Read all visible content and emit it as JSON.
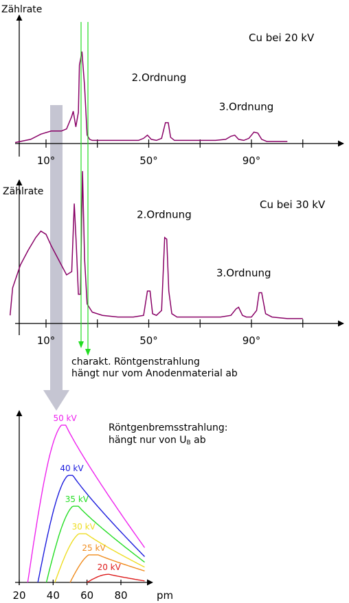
{
  "chart_data": [
    {
      "type": "line",
      "ylabel": "Zählrate",
      "annotation": "Cu bei 20 kV",
      "x_ticks": [
        "10°",
        "50°",
        "90°"
      ],
      "x_tick_values": [
        10,
        50,
        90
      ],
      "peak_labels": [
        {
          "text": "2.Ordnung",
          "x": 54,
          "y": 0.6
        },
        {
          "text": "3.Ordnung",
          "x": 88,
          "y": 0.32
        }
      ],
      "series": [
        {
          "x": [
            -2,
            4,
            8,
            12,
            16,
            18,
            20,
            20.6,
            21.6,
            22.6,
            23,
            24,
            25,
            26,
            27,
            28,
            30,
            34,
            38,
            42,
            46,
            48,
            49.5,
            51,
            53,
            55,
            56.5,
            57.6,
            58.5,
            60,
            64,
            68,
            72,
            76,
            80,
            82,
            83.5,
            85,
            87,
            89,
            91,
            92.5,
            94,
            96,
            100,
            104
          ],
          "y": [
            0.01,
            0.04,
            0.09,
            0.12,
            0.12,
            0.14,
            0.26,
            0.31,
            0.16,
            0.3,
            0.75,
            0.88,
            0.55,
            0.08,
            0.04,
            0.03,
            0.03,
            0.03,
            0.03,
            0.03,
            0.03,
            0.05,
            0.08,
            0.04,
            0.03,
            0.05,
            0.2,
            0.2,
            0.06,
            0.03,
            0.03,
            0.03,
            0.03,
            0.03,
            0.04,
            0.07,
            0.08,
            0.04,
            0.03,
            0.05,
            0.11,
            0.1,
            0.04,
            0.02,
            0.02,
            0.02
          ]
        }
      ]
    },
    {
      "type": "line",
      "ylabel": "Zählrate",
      "annotation": "Cu bei 30 kV",
      "x_ticks": [
        "10°",
        "50°",
        "90°"
      ],
      "x_tick_values": [
        10,
        50,
        90
      ],
      "peak_labels": [
        {
          "text": "2.Ordnung",
          "x": 56,
          "y": 0.65
        },
        {
          "text": "3.Ordnung",
          "x": 87,
          "y": 0.29
        }
      ],
      "series": [
        {
          "x": [
            -4,
            -3,
            0,
            3,
            6,
            8,
            10,
            12,
            15,
            18,
            20,
            21,
            21.8,
            22.6,
            23.4,
            24.2,
            25,
            26,
            28,
            32,
            38,
            44,
            48,
            49.5,
            50.5,
            51.5,
            53,
            55,
            56.2,
            57,
            57.8,
            59,
            61,
            66,
            72,
            78,
            82,
            84,
            85,
            86.5,
            88,
            90,
            92,
            93,
            94,
            95.5,
            98,
            104,
            110
          ],
          "y": [
            0.05,
            0.22,
            0.36,
            0.45,
            0.53,
            0.57,
            0.55,
            0.48,
            0.39,
            0.3,
            0.32,
            0.74,
            0.48,
            0.18,
            0.18,
            0.94,
            0.4,
            0.12,
            0.07,
            0.05,
            0.04,
            0.04,
            0.05,
            0.2,
            0.2,
            0.06,
            0.05,
            0.08,
            0.53,
            0.52,
            0.2,
            0.06,
            0.04,
            0.04,
            0.04,
            0.04,
            0.05,
            0.09,
            0.1,
            0.05,
            0.04,
            0.04,
            0.08,
            0.19,
            0.19,
            0.06,
            0.04,
            0.03,
            0.03
          ]
        }
      ]
    },
    {
      "type": "line",
      "xlabel": "pm",
      "x_ticks": [
        "20",
        "40",
        "60",
        "80"
      ],
      "x_tick_values": [
        20,
        40,
        60,
        80
      ],
      "annotation_lines": [
        "Röntgenbremsstrahlung:",
        "hängt nur von U"
      ],
      "annotation_sub": "B",
      "annotation_tail": " ab",
      "series": [
        {
          "name": "50 kV",
          "color": "#ee22ee",
          "start": 25,
          "peak_x": 47,
          "peak": 0.97
        },
        {
          "name": "40 kV",
          "color": "#1a1add",
          "start": 31,
          "peak_x": 51,
          "peak": 0.66
        },
        {
          "name": "35 kV",
          "color": "#22dd22",
          "start": 36,
          "peak_x": 54,
          "peak": 0.47
        },
        {
          "name": "30 kV",
          "color": "#eedd22",
          "start": 41,
          "peak_x": 58,
          "peak": 0.3
        },
        {
          "name": "25 kV",
          "color": "#f08a1a",
          "start": 50,
          "peak_x": 64,
          "peak": 0.17
        },
        {
          "name": "20 kV",
          "color": "#dd1a1a",
          "start": 60,
          "peak_x": 73,
          "peak": 0.05
        }
      ]
    }
  ],
  "note_lines": [
    "charakt. Röntgenstrahlung",
    "hängt nur vom Anodenmaterial ab"
  ],
  "colors": {
    "spectrum": "#880066",
    "guide": "#22dd22",
    "big_arrow": "#c5c5d2",
    "axis": "#000000"
  }
}
